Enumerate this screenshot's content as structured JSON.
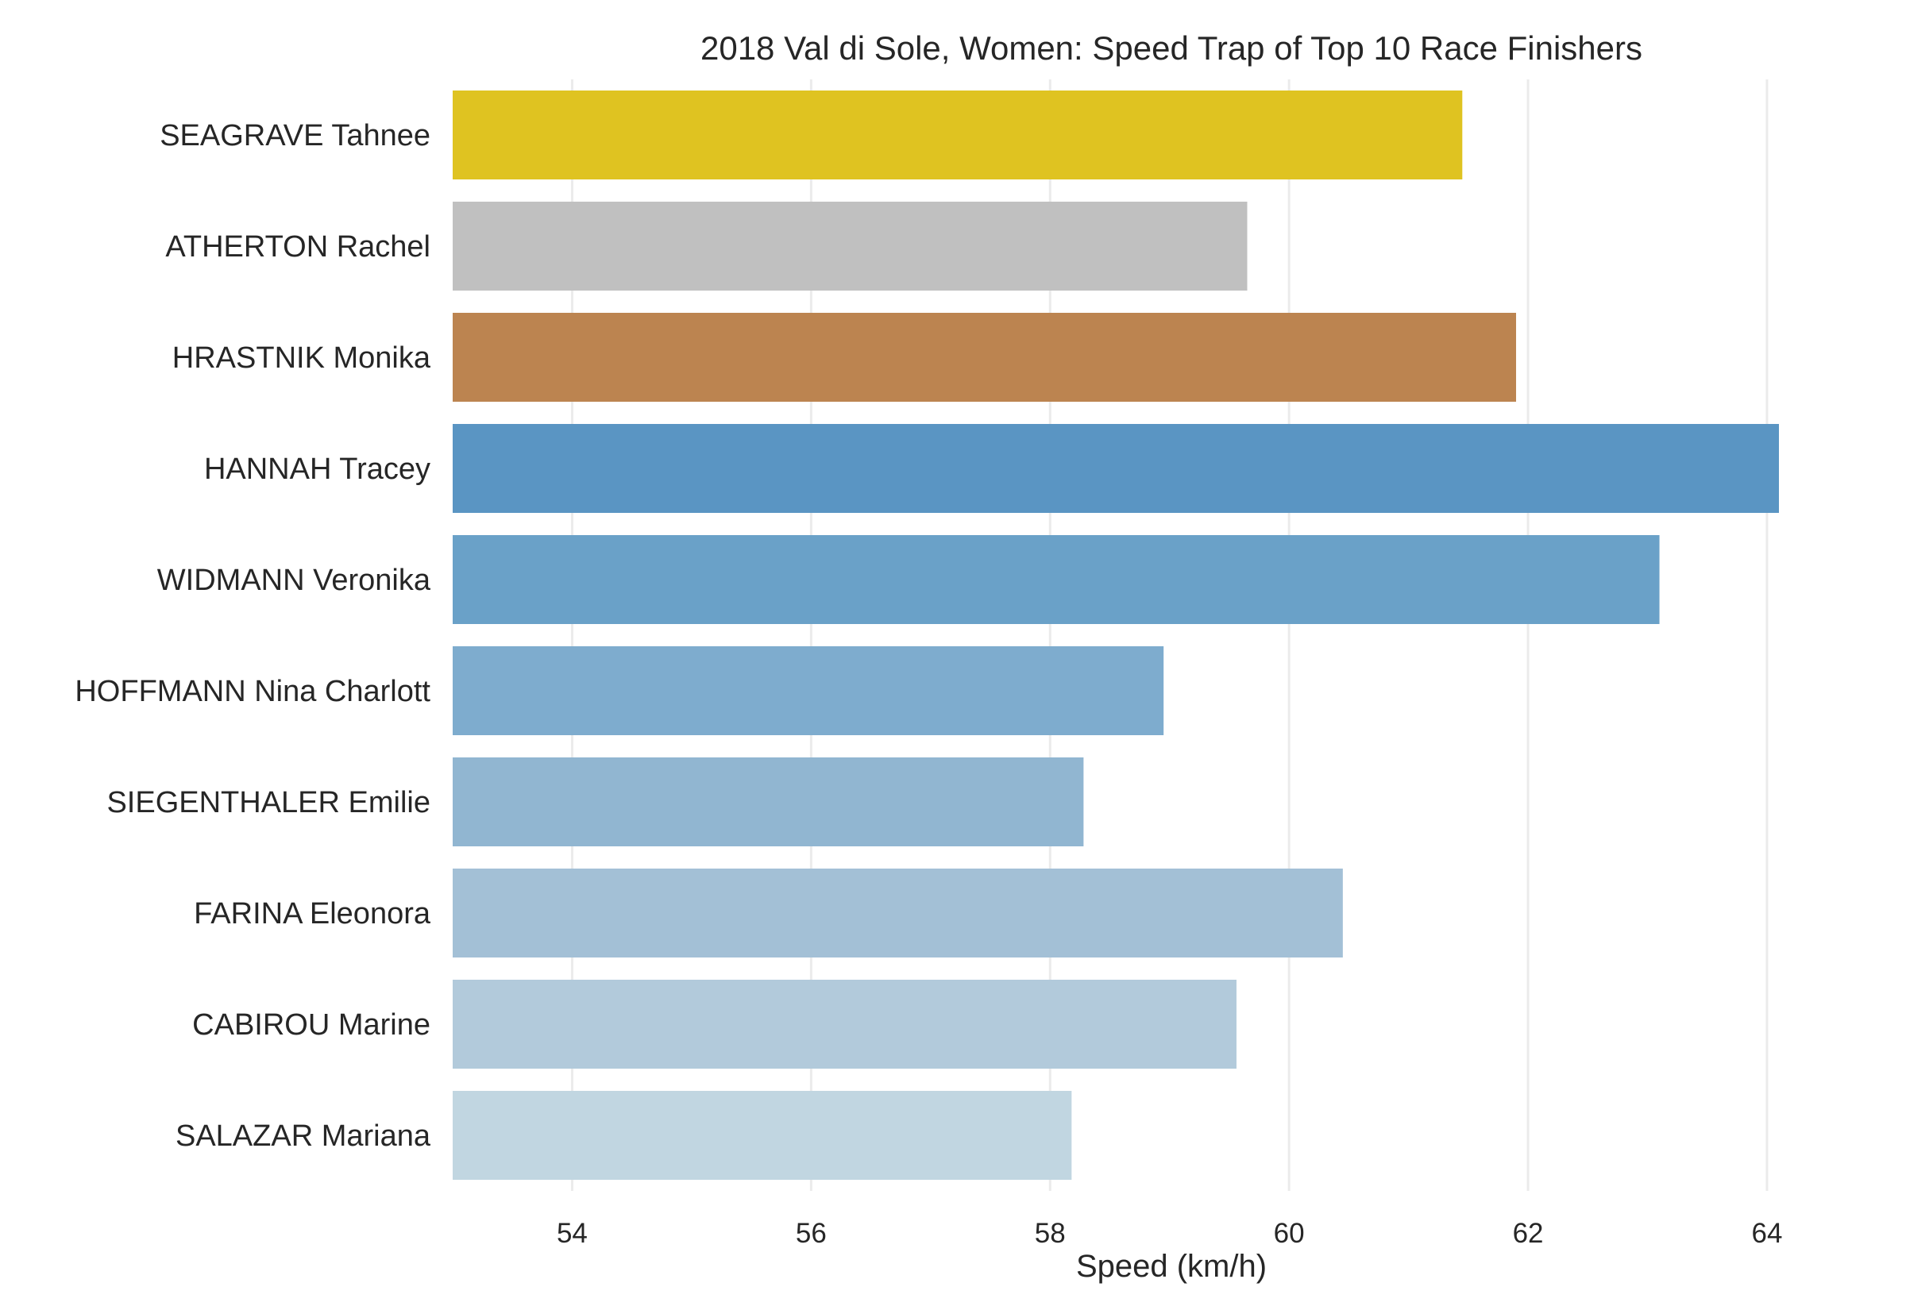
{
  "chart_data": {
    "type": "bar",
    "orientation": "horizontal",
    "title": "2018 Val di Sole, Women: Speed Trap of Top 10 Race Finishers",
    "xlabel": "Speed (km/h)",
    "ylabel": "",
    "xlim": [
      53,
      64.1
    ],
    "xticks": [
      54,
      56,
      58,
      60,
      62,
      64
    ],
    "grid": "vertical",
    "categories": [
      "SEAGRAVE Tahnee",
      "ATHERTON Rachel",
      "HRASTNIK Monika",
      "HANNAH Tracey",
      "WIDMANN Veronika",
      "HOFFMANN Nina Charlott",
      "SIEGENTHALER Emilie",
      "FARINA Eleonora",
      "CABIROU Marine",
      "SALAZAR Mariana"
    ],
    "values": [
      61.45,
      59.65,
      61.9,
      64.1,
      63.1,
      58.95,
      58.28,
      60.45,
      59.56,
      58.18
    ],
    "colors": [
      "#dfc321",
      "#c0c0c0",
      "#bc8450",
      "#5a95c3",
      "#6aa1c8",
      "#7eacce",
      "#91b6d1",
      "#a3c0d6",
      "#b2cadb",
      "#c1d6e1"
    ]
  }
}
